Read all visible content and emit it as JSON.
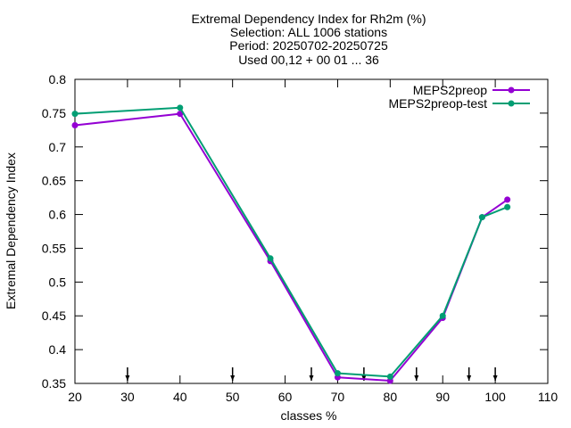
{
  "chart_data": {
    "type": "line",
    "title_lines": [
      "Extremal Dependency Index  for Rh2m (%)",
      "Selection: ALL   1006 stations",
      "Period: 20250702-20250725",
      "Used 00,12 + 00 01 ... 36"
    ],
    "xlabel": "classes %",
    "ylabel": "Extremal Dependency Index",
    "xlim": [
      20,
      110
    ],
    "ylim": [
      0.35,
      0.8
    ],
    "xticks": [
      20,
      30,
      40,
      50,
      60,
      70,
      80,
      90,
      100,
      110
    ],
    "yticks": [
      0.35,
      0.4,
      0.45,
      0.5,
      0.55,
      0.6,
      0.65,
      0.7,
      0.75,
      0.8
    ],
    "legend_position": "top-right",
    "series": [
      {
        "name": "MEPS2preop",
        "color": "#9400d3",
        "x": [
          20,
          40,
          57.2,
          70,
          80,
          90,
          97.5,
          102.3
        ],
        "y": [
          0.732,
          0.749,
          0.531,
          0.359,
          0.354,
          0.447,
          0.596,
          0.622
        ]
      },
      {
        "name": "MEPS2preop-test",
        "color": "#009e73",
        "x": [
          20,
          40,
          57.2,
          70,
          80,
          90,
          97.5,
          102.3
        ],
        "y": [
          0.749,
          0.758,
          0.535,
          0.365,
          0.36,
          0.45,
          0.596,
          0.611
        ]
      }
    ],
    "markers_x": [
      30,
      50,
      65,
      75,
      85,
      95,
      100
    ]
  }
}
